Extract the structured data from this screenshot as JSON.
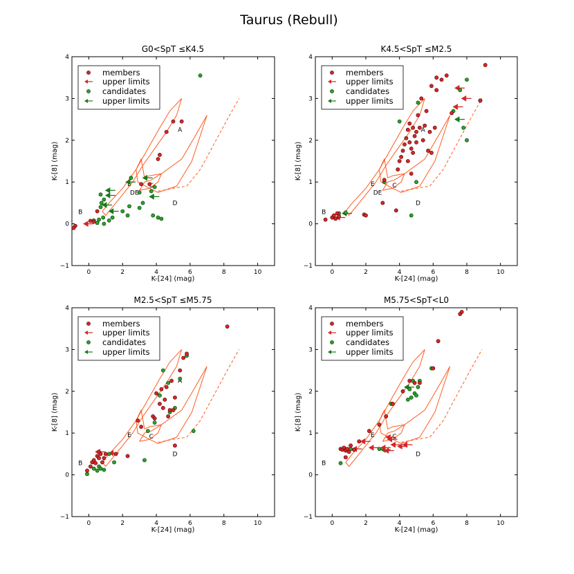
{
  "figure_title": "Taurus (Rebull)",
  "colors": {
    "member": "#d62728",
    "member_edge": "#4a0000",
    "candidate": "#2ca02c",
    "candidate_edge": "#0a3a0a",
    "member_arrow": "#d62728",
    "candidate_arrow": "#1a7a1a",
    "model": "#ff5a1f"
  },
  "chart_data": [
    {
      "type": "scatter",
      "title": "G0<SpT ≤K4.5",
      "xlabel": "K-[24] (mag)",
      "ylabel": "K-[8] (mag)",
      "xlim": [
        -1,
        11
      ],
      "ylim": [
        -1,
        4
      ],
      "xticks": [
        "0",
        "2",
        "4",
        "6",
        "8",
        "10"
      ],
      "yticks": [
        "−1",
        "0",
        "1",
        "2",
        "3",
        "4"
      ],
      "legend": {
        "position": "upper-left",
        "entries": [
          "members",
          "upper limits",
          "candidates",
          "upper limits"
        ]
      },
      "region_labels": [
        "A",
        "B",
        "C",
        "D",
        "DE",
        "E"
      ],
      "members": [
        [
          -0.8,
          -0.05
        ],
        [
          -0.9,
          -0.1
        ],
        [
          0.1,
          0.07
        ],
        [
          0.3,
          0.05
        ],
        [
          0.5,
          0.3
        ],
        [
          3.1,
          0.95
        ],
        [
          3.6,
          0.95
        ],
        [
          4.1,
          1.55
        ],
        [
          4.2,
          1.65
        ],
        [
          4.6,
          2.2
        ],
        [
          5.0,
          2.45
        ],
        [
          5.5,
          2.45
        ]
      ],
      "member_upper_limits": [
        [
          -0.3,
          0.0
        ]
      ],
      "candidates": [
        [
          0.3,
          0.08
        ],
        [
          0.5,
          0.02
        ],
        [
          0.6,
          0.1
        ],
        [
          0.7,
          0.4
        ],
        [
          0.75,
          0.5
        ],
        [
          0.85,
          0.15
        ],
        [
          0.9,
          0.0
        ],
        [
          0.9,
          0.58
        ],
        [
          0.7,
          0.7
        ],
        [
          1.2,
          0.08
        ],
        [
          1.4,
          0.15
        ],
        [
          2.0,
          0.3
        ],
        [
          2.3,
          0.2
        ],
        [
          2.4,
          0.42
        ],
        [
          2.5,
          1.1
        ],
        [
          3.0,
          0.38
        ],
        [
          3.0,
          0.75
        ],
        [
          3.2,
          0.5
        ],
        [
          3.8,
          0.2
        ],
        [
          4.1,
          0.15
        ],
        [
          4.3,
          0.12
        ],
        [
          3.9,
          0.88
        ],
        [
          3.7,
          0.78
        ],
        [
          6.6,
          3.55
        ]
      ],
      "candidate_upper_limits": [
        [
          1.0,
          0.68
        ],
        [
          1.0,
          0.8
        ],
        [
          0.8,
          0.45
        ],
        [
          1.2,
          0.3
        ],
        [
          2.2,
          1.0
        ],
        [
          3.2,
          1.1
        ],
        [
          3.6,
          0.65
        ]
      ]
    },
    {
      "type": "scatter",
      "title": "K4.5<SpT ≤M2.5",
      "xlabel": "K-[24] (mag)",
      "ylabel": "K-[8] (mag)",
      "xlim": [
        -1,
        11
      ],
      "ylim": [
        -1,
        4
      ],
      "xticks": [
        "0",
        "2",
        "4",
        "6",
        "8",
        "10"
      ],
      "yticks": [
        "−1",
        "0",
        "1",
        "2",
        "3",
        "4"
      ],
      "legend": {
        "position": "upper-left",
        "entries": [
          "members",
          "upper limits",
          "candidates",
          "upper limits"
        ]
      },
      "region_labels": [
        "A",
        "B",
        "C",
        "D",
        "DE",
        "E"
      ],
      "members": [
        [
          -0.4,
          0.1
        ],
        [
          0.0,
          0.15
        ],
        [
          0.1,
          0.2
        ],
        [
          0.2,
          0.12
        ],
        [
          0.3,
          0.25
        ],
        [
          0.4,
          0.18
        ],
        [
          1.9,
          0.22
        ],
        [
          2.0,
          0.2
        ],
        [
          3.1,
          1.05
        ],
        [
          3.0,
          0.5
        ],
        [
          3.8,
          0.32
        ],
        [
          3.9,
          1.3
        ],
        [
          4.0,
          1.5
        ],
        [
          4.1,
          1.6
        ],
        [
          4.2,
          1.75
        ],
        [
          4.3,
          1.9
        ],
        [
          4.4,
          2.05
        ],
        [
          4.5,
          1.5
        ],
        [
          4.5,
          2.25
        ],
        [
          4.6,
          1.95
        ],
        [
          4.6,
          2.4
        ],
        [
          4.7,
          1.8
        ],
        [
          4.8,
          2.3
        ],
        [
          4.8,
          1.7
        ],
        [
          4.9,
          2.1
        ],
        [
          5.0,
          2.2
        ],
        [
          5.0,
          1.95
        ],
        [
          5.1,
          2.6
        ],
        [
          5.2,
          2.3
        ],
        [
          5.3,
          3.0
        ],
        [
          5.4,
          2.0
        ],
        [
          5.5,
          2.35
        ],
        [
          5.6,
          2.7
        ],
        [
          5.7,
          1.75
        ],
        [
          5.8,
          2.2
        ],
        [
          5.9,
          3.3
        ],
        [
          6.1,
          2.3
        ],
        [
          6.2,
          3.5
        ],
        [
          6.5,
          3.45
        ],
        [
          6.8,
          3.55
        ],
        [
          6.2,
          3.2
        ],
        [
          5.9,
          1.7
        ],
        [
          7.1,
          2.65
        ],
        [
          8.8,
          2.95
        ],
        [
          9.1,
          3.8
        ],
        [
          4.7,
          1.2
        ]
      ],
      "member_upper_limits": [
        [
          0.2,
          0.15
        ],
        [
          7.3,
          3.25
        ],
        [
          7.7,
          3.0
        ],
        [
          7.2,
          2.8
        ]
      ],
      "candidates": [
        [
          0.4,
          0.25
        ],
        [
          0.8,
          0.27
        ],
        [
          3.1,
          1.0
        ],
        [
          4.0,
          2.45
        ],
        [
          4.7,
          0.2
        ],
        [
          5.0,
          1.0
        ],
        [
          5.1,
          2.9
        ],
        [
          7.2,
          2.7
        ],
        [
          7.6,
          3.2
        ],
        [
          7.8,
          2.3
        ],
        [
          8.0,
          3.45
        ],
        [
          8.8,
          2.95
        ],
        [
          8.0,
          2.0
        ]
      ],
      "candidate_upper_limits": [
        [
          0.6,
          0.25
        ],
        [
          7.3,
          2.5
        ]
      ]
    },
    {
      "type": "scatter",
      "title": "M2.5<SpT ≤M5.75",
      "xlabel": "K-[24] (mag)",
      "ylabel": "K-[8] (mag)",
      "xlim": [
        -1,
        11
      ],
      "ylim": [
        -1,
        4
      ],
      "xticks": [
        "0",
        "2",
        "4",
        "6",
        "8",
        "10"
      ],
      "yticks": [
        "−1",
        "0",
        "1",
        "2",
        "3",
        "4"
      ],
      "legend": {
        "position": "upper-left",
        "entries": [
          "members",
          "upper limits",
          "candidates",
          "upper limits"
        ]
      },
      "region_labels": [
        "A",
        "B",
        "C",
        "D",
        "E"
      ],
      "members": [
        [
          -0.1,
          0.1
        ],
        [
          0.1,
          0.2
        ],
        [
          0.2,
          0.3
        ],
        [
          0.3,
          0.35
        ],
        [
          0.4,
          0.28
        ],
        [
          0.5,
          0.45
        ],
        [
          0.6,
          0.4
        ],
        [
          0.6,
          0.55
        ],
        [
          0.7,
          0.5
        ],
        [
          0.8,
          0.3
        ],
        [
          0.9,
          0.4
        ],
        [
          1.0,
          0.5
        ],
        [
          1.6,
          0.5
        ],
        [
          2.3,
          0.45
        ],
        [
          2.9,
          1.3
        ],
        [
          3.1,
          1.15
        ],
        [
          3.8,
          1.4
        ],
        [
          3.9,
          1.35
        ],
        [
          4.0,
          1.95
        ],
        [
          4.2,
          1.7
        ],
        [
          4.3,
          2.05
        ],
        [
          4.4,
          1.6
        ],
        [
          4.5,
          1.8
        ],
        [
          4.6,
          2.1
        ],
        [
          4.7,
          1.4
        ],
        [
          4.8,
          1.55
        ],
        [
          4.9,
          2.25
        ],
        [
          5.0,
          1.55
        ],
        [
          5.1,
          1.85
        ],
        [
          5.4,
          2.5
        ],
        [
          5.6,
          2.8
        ],
        [
          5.8,
          2.9
        ],
        [
          8.2,
          3.55
        ],
        [
          5.1,
          0.7
        ]
      ],
      "member_upper_limits": [
        [
          0.4,
          0.55
        ],
        [
          1.2,
          0.52
        ]
      ],
      "candidates": [
        [
          -0.1,
          0.02
        ],
        [
          0.3,
          0.15
        ],
        [
          0.5,
          0.1
        ],
        [
          0.6,
          0.2
        ],
        [
          0.7,
          0.15
        ],
        [
          0.9,
          0.12
        ],
        [
          1.5,
          0.3
        ],
        [
          1.2,
          0.5
        ],
        [
          3.3,
          0.35
        ],
        [
          3.9,
          1.25
        ],
        [
          4.2,
          1.9
        ],
        [
          4.4,
          2.5
        ],
        [
          4.7,
          2.2
        ],
        [
          4.8,
          1.5
        ],
        [
          5.1,
          1.6
        ],
        [
          5.4,
          2.3
        ],
        [
          5.8,
          2.85
        ],
        [
          6.2,
          1.05
        ],
        [
          3.5,
          1.05
        ]
      ],
      "candidate_upper_limits": []
    },
    {
      "type": "scatter",
      "title": "M5.75<SpT<L0",
      "xlabel": "K-[24] (mag)",
      "ylabel": "K-[8] (mag)",
      "xlim": [
        -1,
        11
      ],
      "ylim": [
        -1,
        4
      ],
      "xticks": [
        "0",
        "2",
        "4",
        "6",
        "8",
        "10"
      ],
      "yticks": [
        "−1",
        "0",
        "1",
        "2",
        "3",
        "4"
      ],
      "legend": {
        "position": "upper-left",
        "entries": [
          "members",
          "upper limits",
          "candidates",
          "upper limits"
        ]
      },
      "region_labels": [
        "B",
        "C",
        "D",
        "E"
      ],
      "members": [
        [
          0.5,
          0.62
        ],
        [
          0.6,
          0.6
        ],
        [
          0.7,
          0.65
        ],
        [
          0.8,
          0.58
        ],
        [
          0.9,
          0.62
        ],
        [
          1.0,
          0.55
        ],
        [
          1.1,
          0.7
        ],
        [
          1.3,
          0.6
        ],
        [
          0.8,
          0.42
        ],
        [
          1.6,
          0.8
        ],
        [
          2.2,
          1.05
        ],
        [
          2.8,
          1.2
        ],
        [
          3.2,
          1.4
        ],
        [
          3.6,
          1.7
        ],
        [
          4.2,
          2.0
        ],
        [
          4.6,
          2.25
        ],
        [
          4.9,
          2.2
        ],
        [
          5.2,
          2.2
        ],
        [
          6.0,
          2.55
        ],
        [
          6.3,
          3.2
        ],
        [
          7.6,
          3.85
        ],
        [
          7.7,
          3.9
        ]
      ],
      "member_upper_limits": [
        [
          1.2,
          0.62
        ],
        [
          1.7,
          0.8
        ],
        [
          2.2,
          0.65
        ],
        [
          2.9,
          0.65
        ],
        [
          3.1,
          0.58
        ],
        [
          3.2,
          0.9
        ],
        [
          3.3,
          0.85
        ],
        [
          3.5,
          0.72
        ],
        [
          3.9,
          0.68
        ],
        [
          4.2,
          0.72
        ]
      ],
      "candidates": [
        [
          0.5,
          0.28
        ],
        [
          1.1,
          0.62
        ],
        [
          2.8,
          0.62
        ],
        [
          3.5,
          1.7
        ],
        [
          4.5,
          1.8
        ],
        [
          4.6,
          2.05
        ],
        [
          4.8,
          2.25
        ],
        [
          4.9,
          1.95
        ],
        [
          5.0,
          1.9
        ],
        [
          5.1,
          2.1
        ],
        [
          4.7,
          1.85
        ],
        [
          5.2,
          2.25
        ],
        [
          5.9,
          2.55
        ]
      ],
      "candidate_upper_limits": [
        [
          4.3,
          2.1
        ],
        [
          2.9,
          0.6
        ]
      ]
    }
  ]
}
